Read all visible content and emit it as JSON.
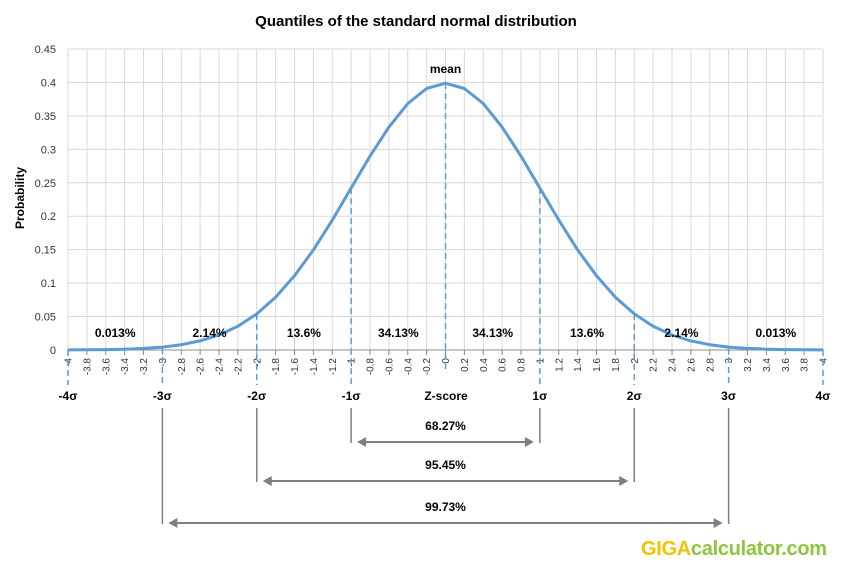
{
  "chart_data": {
    "type": "line",
    "title": "Quantiles of the standard normal distribution",
    "xlabel": "Z-score",
    "ylabel": "Probability",
    "xlim": [
      -4,
      4
    ],
    "ylim": [
      0,
      0.45
    ],
    "yticks": [
      "0",
      "0.05",
      "0.1",
      "0.15",
      "0.2",
      "0.25",
      "0.3",
      "0.35",
      "0.4",
      "0.45"
    ],
    "xticks": [
      "-4",
      "-3.8",
      "-3.6",
      "-3.4",
      "-3.2",
      "-3",
      "-2.8",
      "-2.6",
      "-2.4",
      "-2.2",
      "-2",
      "-1.8",
      "-1.6",
      "-1.4",
      "-1.2",
      "-1",
      "-0.8",
      "-0.6",
      "-0.4",
      "-0.2",
      "0",
      "0.2",
      "0.4",
      "0.6",
      "0.8",
      "1",
      "1.2",
      "1.4",
      "1.6",
      "1.8",
      "2",
      "2.2",
      "2.4",
      "2.6",
      "2.8",
      "3",
      "3.2",
      "3.4",
      "3.6",
      "3.8",
      "4"
    ],
    "grid": true,
    "series": [
      {
        "color": "#5b9bd5",
        "x": [
          -4,
          -3.8,
          -3.6,
          -3.4,
          -3.2,
          -3,
          -2.8,
          -2.6,
          -2.4,
          -2.2,
          -2,
          -1.8,
          -1.6,
          -1.4,
          -1.2,
          -1,
          -0.8,
          -0.6,
          -0.4,
          -0.2,
          0,
          0.2,
          0.4,
          0.6,
          0.8,
          1,
          1.2,
          1.4,
          1.6,
          1.8,
          2,
          2.2,
          2.4,
          2.6,
          2.8,
          3,
          3.2,
          3.4,
          3.6,
          3.8,
          4
        ],
        "y": [
          0.0001,
          0.0003,
          0.0006,
          0.0012,
          0.0024,
          0.0044,
          0.0079,
          0.0136,
          0.0224,
          0.0355,
          0.054,
          0.079,
          0.1109,
          0.1497,
          0.1942,
          0.242,
          0.2897,
          0.3332,
          0.3683,
          0.391,
          0.3989,
          0.391,
          0.3683,
          0.3332,
          0.2897,
          0.242,
          0.1942,
          0.1497,
          0.1109,
          0.079,
          0.054,
          0.0355,
          0.0224,
          0.0136,
          0.0079,
          0.0044,
          0.0024,
          0.0012,
          0.0006,
          0.0003,
          0.0001
        ]
      }
    ],
    "mean_label": "mean",
    "sigma_markers": [
      {
        "x": -4,
        "label": "-4σ"
      },
      {
        "x": -3,
        "label": "-3σ"
      },
      {
        "x": -2,
        "label": "-2σ"
      },
      {
        "x": -1,
        "label": "-1σ"
      },
      {
        "x": 1,
        "label": "1σ"
      },
      {
        "x": 2,
        "label": "2σ"
      },
      {
        "x": 3,
        "label": "3σ"
      },
      {
        "x": 4,
        "label": "4σ"
      }
    ],
    "region_labels": [
      {
        "x": -3.5,
        "label": "0.013%"
      },
      {
        "x": -2.5,
        "label": "2.14%"
      },
      {
        "x": -1.5,
        "label": "13.6%"
      },
      {
        "x": -0.5,
        "label": "34.13%"
      },
      {
        "x": 0.5,
        "label": "34.13%"
      },
      {
        "x": 1.5,
        "label": "13.6%"
      },
      {
        "x": 2.5,
        "label": "2.14%"
      },
      {
        "x": 3.5,
        "label": "0.013%"
      }
    ],
    "intervals": [
      {
        "from": -1,
        "to": 1,
        "label": "68.27%"
      },
      {
        "from": -2,
        "to": 2,
        "label": "95.45%"
      },
      {
        "from": -3,
        "to": 3,
        "label": "99.73%"
      }
    ]
  },
  "branding": {
    "part1": "GIGA",
    "part2": "calculator.com"
  }
}
